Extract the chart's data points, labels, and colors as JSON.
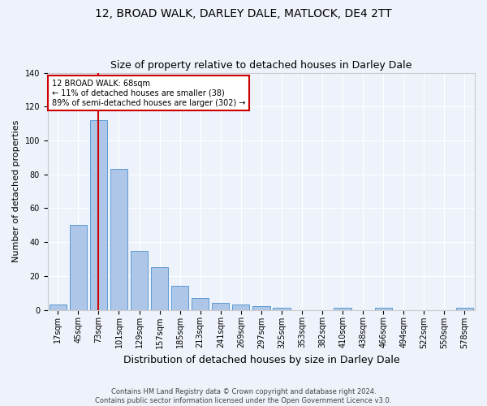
{
  "title": "12, BROAD WALK, DARLEY DALE, MATLOCK, DE4 2TT",
  "subtitle": "Size of property relative to detached houses in Darley Dale",
  "xlabel": "Distribution of detached houses by size in Darley Dale",
  "ylabel": "Number of detached properties",
  "categories": [
    "17sqm",
    "45sqm",
    "73sqm",
    "101sqm",
    "129sqm",
    "157sqm",
    "185sqm",
    "213sqm",
    "241sqm",
    "269sqm",
    "297sqm",
    "325sqm",
    "353sqm",
    "382sqm",
    "410sqm",
    "438sqm",
    "466sqm",
    "494sqm",
    "522sqm",
    "550sqm",
    "578sqm"
  ],
  "values": [
    3,
    50,
    112,
    83,
    35,
    25,
    14,
    7,
    4,
    3,
    2,
    1,
    0,
    0,
    1,
    0,
    1,
    0,
    0,
    0,
    1
  ],
  "bar_color": "#aec6e8",
  "bar_edge_color": "#5b9bd5",
  "subject_bar_index": 2,
  "subject_line_color": "#cc0000",
  "annotation_line1": "12 BROAD WALK: 68sqm",
  "annotation_line2": "← 11% of detached houses are smaller (38)",
  "annotation_line3": "89% of semi-detached houses are larger (302) →",
  "annotation_box_color": "#ffffff",
  "annotation_box_edge": "#cc0000",
  "bg_color": "#eef2fa",
  "plot_bg_color": "#eef2fa",
  "ylim": [
    0,
    140
  ],
  "yticks": [
    0,
    20,
    40,
    60,
    80,
    100,
    120,
    140
  ],
  "footer_line1": "Contains HM Land Registry data © Crown copyright and database right 2024.",
  "footer_line2": "Contains public sector information licensed under the Open Government Licence v3.0.",
  "title_fontsize": 10,
  "subtitle_fontsize": 9,
  "tick_fontsize": 7,
  "ylabel_fontsize": 8,
  "xlabel_fontsize": 9,
  "annotation_fontsize": 7,
  "footer_fontsize": 6
}
